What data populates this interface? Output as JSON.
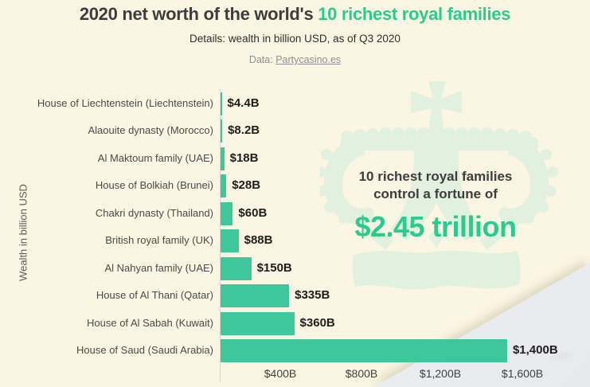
{
  "header": {
    "title_dark": "2020 net worth of the world's ",
    "title_green": "10 richest royal families",
    "subtitle": "Details: wealth in billion USD, as of Q3 2020",
    "source_prefix": "Data: ",
    "source_link": "Partycasino.es"
  },
  "annotation": {
    "line1": "10 richest royal families",
    "line2": "control a fortune of",
    "amount": "$2.45 trillion"
  },
  "watermark_icon": "crown",
  "chart_data": {
    "type": "bar",
    "orientation": "horizontal",
    "title": "2020 net worth of the world's 10 richest royal families",
    "subtitle": "Details: wealth in billion USD, as of Q3 2020",
    "ylabel": "Wealth in billion USD",
    "xlabel": "",
    "unit": "billion USD",
    "xlim": [
      0,
      1800
    ],
    "grid": false,
    "legend": false,
    "categories": [
      "House of Liechtenstein (Liechtenstein)",
      "Alaouite dynasty (Morocco)",
      "Al Maktoum family (UAE)",
      "House of Bolkiah (Brunei)",
      "Chakri dynasty (Thailand)",
      "British royal family (UK)",
      "Al Nahyan family (UAE)",
      "House of Al Thani (Qatar)",
      "House of Al Sabah (Kuwait)",
      "House of Saud (Saudi Arabia)"
    ],
    "values": [
      4.4,
      8.2,
      18,
      28,
      60,
      88,
      150,
      335,
      360,
      1400
    ],
    "value_labels": [
      "$4.4B",
      "$8.2B",
      "$18B",
      "$28B",
      "$60B",
      "$88B",
      "$150B",
      "$335B",
      "$360B",
      "$1,400B"
    ],
    "x_ticks": [
      "$400B",
      "$800B",
      "$1,200B",
      "$1,600B"
    ],
    "x_tick_values": [
      400,
      800,
      1200,
      1600
    ],
    "total_callout": "$2.45 trillion"
  },
  "colors": {
    "background": "#fbf6e3",
    "bar_green": "#3dc79a",
    "accent_green": "#29cc8e",
    "crown_green": "#e2f0df",
    "corner_gray": "#edeff2",
    "label_gray": "#4a4a4a",
    "source_gray": "#8f8f8f",
    "text_dark": "#3d3d3d"
  }
}
